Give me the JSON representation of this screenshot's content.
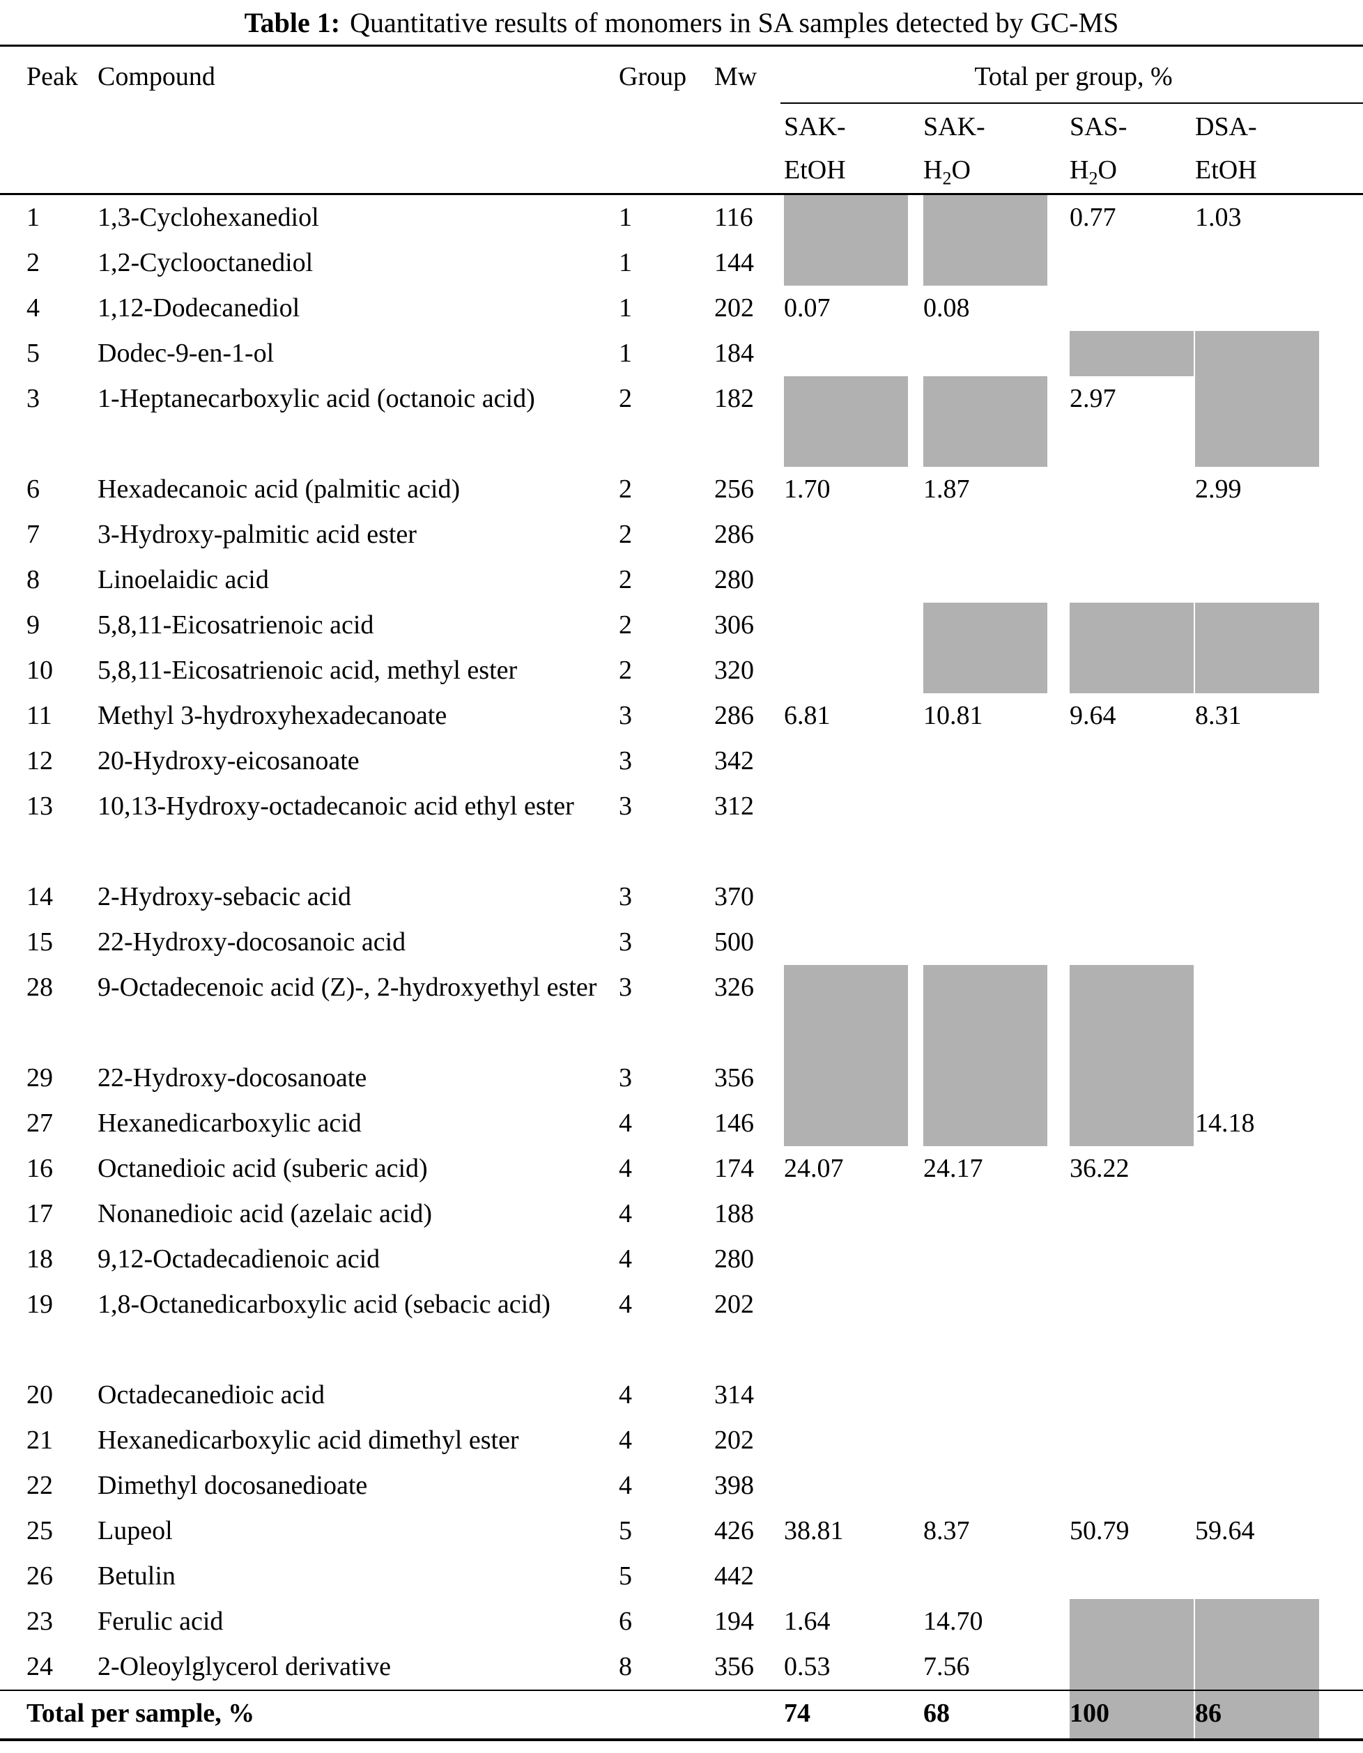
{
  "title": {
    "label": "Table 1:",
    "caption": "Quantitative results of monomers in SA samples detected by GC-MS"
  },
  "columns": {
    "peak": "Peak",
    "compound": "Compound",
    "group": "Group",
    "mw": "Mw",
    "total_per_group": "Total per group, %"
  },
  "samples": [
    {
      "name": "SAK-EtOH",
      "line1": "SAK-",
      "line2_pre": "EtOH",
      "line2_sub": "",
      "line2_post": ""
    },
    {
      "name": "SAK-H2O",
      "line1": "SAK-",
      "line2_pre": "H",
      "line2_sub": "2",
      "line2_post": "O"
    },
    {
      "name": "SAS-H2O",
      "line1": "SAS-",
      "line2_pre": "H",
      "line2_sub": "2",
      "line2_post": "O"
    },
    {
      "name": "DSA-EtOH",
      "line1": "DSA-",
      "line2_pre": "EtOH",
      "line2_sub": "",
      "line2_post": ""
    }
  ],
  "gray_color": "#b1b1b1",
  "rows": [
    {
      "peak": "1",
      "compound": "1,3-Cyclohexanediol",
      "group": "1",
      "mw": "116",
      "values": [
        "",
        "",
        "0.77",
        "1.03"
      ],
      "gray": [
        true,
        true,
        false,
        false
      ],
      "lines": 1
    },
    {
      "peak": "2",
      "compound": "1,2-Cyclooctanediol",
      "group": "1",
      "mw": "144",
      "values": [
        "",
        "",
        "",
        ""
      ],
      "gray": [
        true,
        true,
        false,
        false
      ],
      "lines": 1
    },
    {
      "peak": "4",
      "compound": "1,12-Dodecanediol",
      "group": "1",
      "mw": "202",
      "values": [
        "0.07",
        "0.08",
        "",
        ""
      ],
      "gray": [
        false,
        false,
        false,
        false
      ],
      "lines": 1
    },
    {
      "peak": "5",
      "compound": "Dodec-9-en-1-ol",
      "group": "1",
      "mw": "184",
      "values": [
        "",
        "",
        "",
        ""
      ],
      "gray": [
        false,
        false,
        true,
        true
      ],
      "lines": 1
    },
    {
      "peak": "3",
      "compound": "1-Heptanecarboxylic acid (octanoic acid)",
      "group": "2",
      "mw": "182",
      "values": [
        "",
        "",
        "2.97",
        ""
      ],
      "gray": [
        true,
        true,
        false,
        true
      ],
      "lines": 2
    },
    {
      "peak": "6",
      "compound": "Hexadecanoic acid (palmitic acid)",
      "group": "2",
      "mw": "256",
      "values": [
        "1.70",
        "1.87",
        "",
        "2.99"
      ],
      "gray": [
        false,
        false,
        false,
        false
      ],
      "lines": 1
    },
    {
      "peak": "7",
      "compound": "3-Hydroxy-palmitic acid ester",
      "group": "2",
      "mw": "286",
      "values": [
        "",
        "",
        "",
        ""
      ],
      "gray": [
        false,
        false,
        false,
        false
      ],
      "lines": 1
    },
    {
      "peak": "8",
      "compound": "Linoelaidic acid",
      "group": "2",
      "mw": "280",
      "values": [
        "",
        "",
        "",
        ""
      ],
      "gray": [
        false,
        false,
        false,
        false
      ],
      "lines": 1
    },
    {
      "peak": "9",
      "compound": "5,8,11-Eicosatrienoic acid",
      "group": "2",
      "mw": "306",
      "values": [
        "",
        "",
        "",
        ""
      ],
      "gray": [
        false,
        true,
        true,
        true
      ],
      "lines": 1
    },
    {
      "peak": "10",
      "compound": "5,8,11-Eicosatrienoic acid, methyl ester",
      "group": "2",
      "mw": "320",
      "values": [
        "",
        "",
        "",
        ""
      ],
      "gray": [
        false,
        true,
        true,
        true
      ],
      "lines": 1
    },
    {
      "peak": "11",
      "compound": "Methyl 3-hydroxyhexadecanoate",
      "group": "3",
      "mw": "286",
      "values": [
        "6.81",
        "10.81",
        "9.64",
        "8.31"
      ],
      "gray": [
        false,
        false,
        false,
        false
      ],
      "lines": 1
    },
    {
      "peak": "12",
      "compound": "20-Hydroxy-eicosanoate",
      "group": "3",
      "mw": "342",
      "values": [
        "",
        "",
        "",
        ""
      ],
      "gray": [
        false,
        false,
        false,
        false
      ],
      "lines": 1
    },
    {
      "peak": "13",
      "compound": "10,13-Hydroxy-octadecanoic acid ethyl ester",
      "group": "3",
      "mw": "312",
      "values": [
        "",
        "",
        "",
        ""
      ],
      "gray": [
        false,
        false,
        false,
        false
      ],
      "lines": 2
    },
    {
      "peak": "14",
      "compound": "2-Hydroxy-sebacic acid",
      "group": "3",
      "mw": "370",
      "values": [
        "",
        "",
        "",
        ""
      ],
      "gray": [
        false,
        false,
        false,
        false
      ],
      "lines": 1
    },
    {
      "peak": "15",
      "compound": "22-Hydroxy-docosanoic acid",
      "group": "3",
      "mw": "500",
      "values": [
        "",
        "",
        "",
        ""
      ],
      "gray": [
        false,
        false,
        false,
        false
      ],
      "lines": 1
    },
    {
      "peak": "28",
      "compound": "9-Octadecenoic acid (Z)-, 2-hydroxyethyl ester",
      "group": "3",
      "mw": "326",
      "values": [
        "",
        "",
        "",
        ""
      ],
      "gray": [
        true,
        true,
        true,
        false
      ],
      "lines": 2
    },
    {
      "peak": "29",
      "compound": "22-Hydroxy-docosanoate",
      "group": "3",
      "mw": "356",
      "values": [
        "",
        "",
        "",
        ""
      ],
      "gray": [
        true,
        true,
        true,
        false
      ],
      "lines": 1
    },
    {
      "peak": "27",
      "compound": "Hexanedicarboxylic acid",
      "group": "4",
      "mw": "146",
      "values": [
        "",
        "",
        "",
        "14.18"
      ],
      "gray": [
        true,
        true,
        true,
        false
      ],
      "lines": 1
    },
    {
      "peak": "16",
      "compound": "Octanedioic acid (suberic acid)",
      "group": "4",
      "mw": "174",
      "values": [
        "24.07",
        "24.17",
        "36.22",
        ""
      ],
      "gray": [
        false,
        false,
        false,
        false
      ],
      "lines": 1
    },
    {
      "peak": "17",
      "compound": "Nonanedioic acid (azelaic acid)",
      "group": "4",
      "mw": "188",
      "values": [
        "",
        "",
        "",
        ""
      ],
      "gray": [
        false,
        false,
        false,
        false
      ],
      "lines": 1
    },
    {
      "peak": "18",
      "compound": "9,12-Octadecadienoic acid",
      "group": "4",
      "mw": "280",
      "values": [
        "",
        "",
        "",
        ""
      ],
      "gray": [
        false,
        false,
        false,
        false
      ],
      "lines": 1
    },
    {
      "peak": "19",
      "compound": "1,8-Octanedicarboxylic acid (sebacic acid)",
      "group": "4",
      "mw": "202",
      "values": [
        "",
        "",
        "",
        ""
      ],
      "gray": [
        false,
        false,
        false,
        false
      ],
      "lines": 2
    },
    {
      "peak": "20",
      "compound": "Octadecanedioic acid",
      "group": "4",
      "mw": "314",
      "values": [
        "",
        "",
        "",
        ""
      ],
      "gray": [
        false,
        false,
        false,
        false
      ],
      "lines": 1
    },
    {
      "peak": "21",
      "compound": "Hexanedicarboxylic acid dimethyl ester",
      "group": "4",
      "mw": "202",
      "values": [
        "",
        "",
        "",
        ""
      ],
      "gray": [
        false,
        false,
        false,
        false
      ],
      "lines": 1
    },
    {
      "peak": "22",
      "compound": "Dimethyl docosanedioate",
      "group": "4",
      "mw": "398",
      "values": [
        "",
        "",
        "",
        ""
      ],
      "gray": [
        false,
        false,
        false,
        false
      ],
      "lines": 1
    },
    {
      "peak": "25",
      "compound": "Lupeol",
      "group": "5",
      "mw": "426",
      "values": [
        "38.81",
        "8.37",
        "50.79",
        "59.64"
      ],
      "gray": [
        false,
        false,
        false,
        false
      ],
      "lines": 1
    },
    {
      "peak": "26",
      "compound": "Betulin",
      "group": "5",
      "mw": "442",
      "values": [
        "",
        "",
        "",
        ""
      ],
      "gray": [
        false,
        false,
        false,
        false
      ],
      "lines": 1
    },
    {
      "peak": "23",
      "compound": "Ferulic acid",
      "group": "6",
      "mw": "194",
      "values": [
        "1.64",
        "14.70",
        "",
        ""
      ],
      "gray": [
        false,
        false,
        true,
        true
      ],
      "lines": 1
    },
    {
      "peak": "24",
      "compound": "2-Oleoylglycerol derivative",
      "group": "8",
      "mw": "356",
      "values": [
        "0.53",
        "7.56",
        "",
        ""
      ],
      "gray": [
        false,
        false,
        true,
        true
      ],
      "lines": 1
    }
  ],
  "total": {
    "label": "Total per sample, %",
    "values": [
      "74",
      "68",
      "100",
      "86"
    ],
    "gray": [
      false,
      false,
      true,
      true
    ]
  }
}
